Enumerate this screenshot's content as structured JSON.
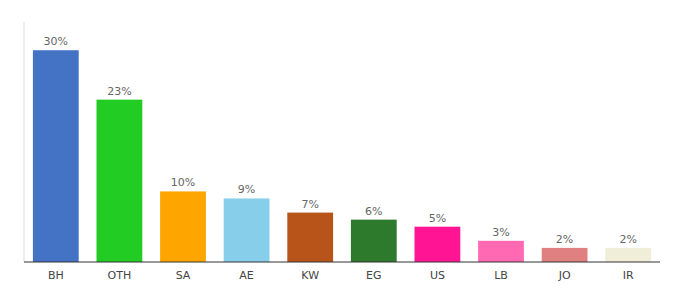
{
  "chart_data": {
    "type": "bar",
    "categories": [
      "BH",
      "OTH",
      "SA",
      "AE",
      "KW",
      "EG",
      "US",
      "LB",
      "JO",
      "IR"
    ],
    "values": [
      30,
      23,
      10,
      9,
      7,
      6,
      5,
      3,
      2,
      2
    ],
    "value_labels": [
      "30%",
      "23%",
      "10%",
      "9%",
      "7%",
      "6%",
      "5%",
      "3%",
      "2%",
      "2%"
    ],
    "colors": [
      "#4472C4",
      "#22CC22",
      "#FFA500",
      "#87CEEB",
      "#B8541A",
      "#2D7A2D",
      "#FF1493",
      "#FF69B4",
      "#E08080",
      "#F0EDD8"
    ],
    "ylim": [
      0,
      34
    ],
    "data_labels": true,
    "tick_labels": "x",
    "grid": false
  }
}
